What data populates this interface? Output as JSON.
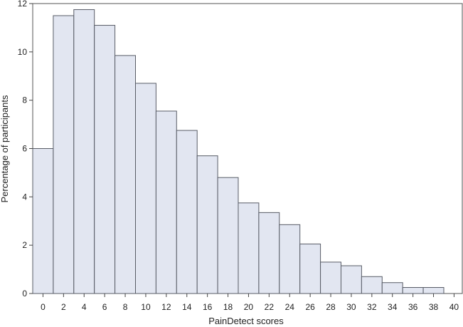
{
  "chart_data": {
    "type": "bar",
    "title": "",
    "xlabel": "PainDetect scores",
    "ylabel": "Percentage of participants",
    "categories": [
      "0",
      "2",
      "4",
      "6",
      "8",
      "10",
      "12",
      "14",
      "16",
      "18",
      "20",
      "22",
      "24",
      "26",
      "28",
      "30",
      "32",
      "34",
      "36",
      "38"
    ],
    "values": [
      6.0,
      11.5,
      11.75,
      11.1,
      9.85,
      8.7,
      7.55,
      6.75,
      5.7,
      4.8,
      3.75,
      3.35,
      2.85,
      2.05,
      1.3,
      1.15,
      0.7,
      0.45,
      0.25,
      0.25
    ],
    "x_ticks": [
      "0",
      "2",
      "4",
      "6",
      "8",
      "10",
      "12",
      "14",
      "16",
      "18",
      "20",
      "22",
      "24",
      "26",
      "28",
      "30",
      "32",
      "34",
      "36",
      "38",
      "40"
    ],
    "y_ticks": [
      "0",
      "2",
      "4",
      "6",
      "8",
      "10",
      "12"
    ],
    "xlim": [
      -1,
      40.8
    ],
    "ylim": [
      0,
      12
    ],
    "grid": false,
    "colors": {
      "bar_fill": "#e2e6f1",
      "bar_stroke": "#585c66",
      "axis": "#444444"
    }
  }
}
